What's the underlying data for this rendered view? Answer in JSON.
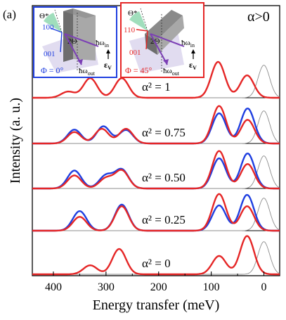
{
  "panel_label": "(a)",
  "condition": "α>0",
  "inset_left": {
    "theta": "Θ*",
    "dir_100": "100",
    "dir_001": "001",
    "two_theta": "2Θ",
    "phi": "Φ = 0°",
    "hw_in": "ħω",
    "hw_in_sub": "in",
    "hw_out": "ħω",
    "hw_out_sub": "out",
    "pol": "ε",
    "pol_sub": "V",
    "color": "#1f3fe0"
  },
  "inset_right": {
    "theta": "Θ*",
    "dir_110": "110",
    "dir_001": "001",
    "two_theta": "2Θ",
    "phi": "Φ = 45°",
    "hw_in": "ħω",
    "hw_in_sub": "in",
    "hw_out": "ħω",
    "hw_out_sub": "out",
    "pol": "ε",
    "pol_sub": "V",
    "color": "#e52626"
  },
  "chart_data": {
    "type": "line",
    "xlabel": "Energy transfer (meV)",
    "ylabel": "Intensity (a. u.)",
    "xlim": [
      440,
      -30
    ],
    "x_ticks": [
      400,
      300,
      200,
      100,
      0
    ],
    "y_ticks_labeled": false,
    "stack": "vertical offset, top = α² = 1",
    "series_colors": {
      "phi_0": "#1f3fe0",
      "phi_45": "#e52626",
      "elastic": "#8c8c8c"
    },
    "elastic_peak": {
      "center": 0,
      "relative_height": 0.8
    },
    "panels": [
      {
        "label": "α² = 1",
        "phi_45_peaks": [
          [
            372,
            0.15
          ],
          [
            330,
            0.48
          ],
          [
            270,
            0.48
          ],
          [
            87,
            0.88
          ],
          [
            32,
            0.55
          ]
        ],
        "phi_0_peaks": null
      },
      {
        "label": "α² = 0.75",
        "phi_45_peaks": [
          [
            360,
            0.28
          ],
          [
            308,
            0.36
          ],
          [
            262,
            0.36
          ],
          [
            85,
            0.92
          ],
          [
            31,
            0.58
          ]
        ],
        "phi_0_peaks": [
          [
            360,
            0.34
          ],
          [
            305,
            0.42
          ],
          [
            262,
            0.33
          ],
          [
            85,
            0.74
          ],
          [
            31,
            0.86
          ]
        ]
      },
      {
        "label": "α² = 0.50",
        "phi_45_peaks": [
          [
            360,
            0.32
          ],
          [
            300,
            0.25
          ],
          [
            270,
            0.44
          ],
          [
            85,
            0.92
          ],
          [
            31,
            0.6
          ]
        ],
        "phi_0_peaks": [
          [
            360,
            0.44
          ],
          [
            300,
            0.32
          ],
          [
            270,
            0.46
          ],
          [
            85,
            0.74
          ],
          [
            31,
            0.86
          ]
        ]
      },
      {
        "label": "α² = 0.25",
        "phi_45_peaks": [
          [
            350,
            0.34
          ],
          [
            270,
            0.6
          ],
          [
            85,
            0.9
          ],
          [
            32,
            0.6
          ]
        ],
        "phi_0_peaks": [
          [
            350,
            0.48
          ],
          [
            270,
            0.64
          ],
          [
            85,
            0.62
          ],
          [
            32,
            0.88
          ]
        ]
      },
      {
        "label": "α² = 0",
        "phi_45_peaks": [
          [
            330,
            0.22
          ],
          [
            275,
            0.62
          ],
          [
            85,
            0.45
          ],
          [
            32,
            0.94
          ]
        ],
        "phi_0_peaks": null
      }
    ]
  }
}
